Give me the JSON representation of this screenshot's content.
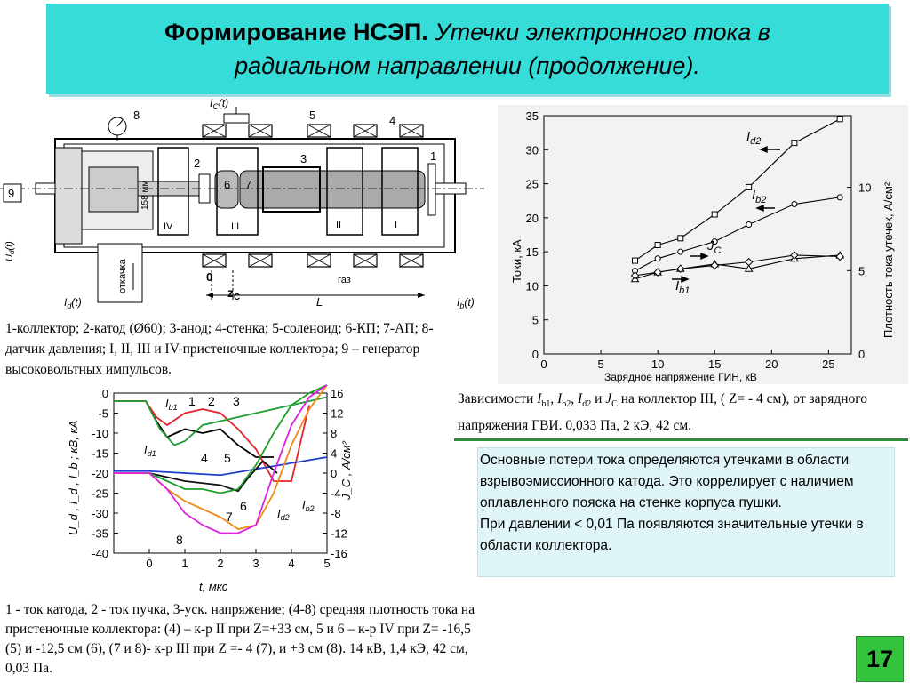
{
  "title": {
    "bold": "Формирование НСЭП.",
    "italic1": "Утечки электронного тока в",
    "italic2": "радиальном направлении (продолжение)."
  },
  "schematic": {
    "labels": {
      "ic": "I",
      "ic_sub": "C",
      "ic_t": "(t)",
      "n8": "8",
      "n5": "5",
      "n4": "4",
      "n3": "3",
      "n2": "2",
      "n1": "1",
      "n6": "6",
      "n7": "7",
      "n9": "9",
      "mm": "158 мм",
      "rIV": "IV",
      "rIII": "III",
      "rII": "II",
      "rI": "I",
      "otkachka": "откачка",
      "gas": "газ",
      "zero": "0",
      "zc": "z",
      "zc_sub": "C",
      "L": "L",
      "ud": "U",
      "ud_sub": "d",
      "ud_t": "(t)",
      "id": "I",
      "id_sub": "d",
      "id_t": "(t)",
      "ib": "I",
      "ib_sub": "b",
      "ib_t": "(t)"
    }
  },
  "caption_top": "1-коллектор; 2-катод (Ø60); 3-анод; 4-стенка; 5-соленоид; 6-КП; 7-АП; 8-датчик давления; I, II, III и IV-пристеночные коллектора; 9 – генератор высоковольтных импульсов.",
  "caption_bottom": "1 - ток катода, 2 - ток пучка,  3-уск. напряжение; (4-8) средняя плотность тока на пристеночные коллектора: (4) – к-р II при Z=+33 см, 5 и 6 – к-р IV при Z= -16,5 (5) и -12,5 см (6), (7 и 8)- к-р III  при Z =- 4 (7), и +3 см (8). 14 кВ, 1,4 кЭ, 42 см, 0,03 Па.",
  "caption_right": {
    "prefix": "Зависимости",
    "text": "на коллектор III, ( Z= - 4 см), от зарядного напряжения ГВИ. 0,033 Па, 2 кЭ, 42 см."
  },
  "notes": [
    "Основные потери тока определяются утечками в области взрывоэмиссионного катода. Это коррелирует с наличием оплавленного пояска на стенке корпуса пушки.",
    "При давлении < 0,01 Па появляются значительные утечки в области коллектора."
  ],
  "page_number": "17",
  "colors": {
    "title_bg": "#35dcd8",
    "divider": "#2f8a3a",
    "page_badge": "#34c33c",
    "notes_bg": "#dff5f7"
  },
  "chart_data": [
    {
      "type": "line",
      "title": "",
      "xlabel": "Зарядное напряжение ГИН, кВ",
      "ylabel": "Токи, кА",
      "ylabel_right": "Плотность тока утечек, А/см²",
      "xlim": [
        0,
        27
      ],
      "ylim": [
        0,
        35
      ],
      "ylim_right": [
        0,
        14.3
      ],
      "x_ticks": [
        "0",
        "5",
        "10",
        "15",
        "20",
        "25"
      ],
      "y_ticks": [
        "0",
        "5",
        "10",
        "15",
        "20",
        "25",
        "30",
        "35"
      ],
      "y_ticks_right": [
        "0",
        "5",
        "10"
      ],
      "series": [
        {
          "name": "Id2",
          "marker": "square",
          "x": [
            8,
            10,
            12,
            15,
            18,
            22,
            26
          ],
          "y": [
            13.7,
            16,
            17,
            20.5,
            24.5,
            31,
            34.5
          ]
        },
        {
          "name": "Ib2",
          "marker": "circle",
          "x": [
            8,
            10,
            12,
            15,
            18,
            22,
            26
          ],
          "y": [
            12.2,
            14,
            15,
            16.5,
            19,
            22,
            23
          ]
        },
        {
          "name": "JC",
          "marker": "triangle",
          "x": [
            8,
            10,
            12,
            15,
            18,
            22,
            26
          ],
          "y": [
            11,
            12,
            12.5,
            13.2,
            12.5,
            14,
            14.5
          ]
        },
        {
          "name": "Ib1",
          "marker": "diamond",
          "x": [
            8,
            10,
            12,
            15,
            18,
            22,
            26
          ],
          "y": [
            11.5,
            12,
            12.5,
            13,
            13.5,
            14.5,
            14.3
          ]
        }
      ],
      "labels": {
        "id2": "I",
        "id2_sub": "d2",
        "ib2": "I",
        "ib2_sub": "b2",
        "jc": "J",
        "jc_sub": "C",
        "ib1": "I",
        "ib1_sub": "b1"
      }
    },
    {
      "type": "line",
      "title": "",
      "xlabel": "t, мкс",
      "ylabel": "U_d , I_d , I_b ; кВ, кА",
      "ylabel_right": "J_C , А/см²",
      "xlim": [
        -1,
        5
      ],
      "ylim": [
        -40,
        0
      ],
      "ylim_right": [
        -16,
        16
      ],
      "x_ticks": [
        "0",
        "1",
        "2",
        "3",
        "4",
        "5"
      ],
      "y_ticks": [
        "0",
        "-5",
        "-10",
        "-15",
        "-20",
        "-25",
        "-30",
        "-35",
        "-40"
      ],
      "y_ticks_right": [
        "16",
        "12",
        "8",
        "4",
        "0",
        "-4",
        "-8",
        "-12",
        "-16"
      ],
      "series": [
        {
          "name": "1",
          "color": "#000000",
          "x": [
            -1,
            -0.1,
            0.2,
            0.5,
            1.0,
            1.5,
            2.0,
            2.5,
            3.0,
            3.5
          ],
          "y": [
            -2,
            -2,
            -7,
            -11,
            -9,
            -10,
            -9,
            -13,
            -16,
            -16
          ]
        },
        {
          "name": "2",
          "color": "#e8222a",
          "x": [
            -1,
            -0.1,
            0.2,
            0.5,
            1.0,
            1.5,
            2.0,
            2.5,
            3.0,
            3.5,
            4.0,
            4.5
          ],
          "y": [
            -2,
            -2,
            -6,
            -8,
            -5,
            -4,
            -5,
            -9,
            -14,
            -22,
            -22,
            -3
          ]
        },
        {
          "name": "3",
          "color": "#1e9e34",
          "x": [
            -1,
            -0.1,
            0.3,
            0.7,
            1.0,
            1.5,
            2.0,
            2.5,
            3.0,
            3.5,
            4.0,
            4.5,
            5.0
          ],
          "y": [
            -2,
            -2,
            -9,
            -13,
            -12,
            -8,
            -7,
            -6,
            -5,
            -4,
            -3,
            -2,
            -1
          ]
        },
        {
          "name": "4",
          "color": "#1f3fd0",
          "x": [
            -1,
            0,
            1,
            2,
            3,
            4,
            5
          ],
          "y": [
            -19.5,
            -19.5,
            -20,
            -20.5,
            -19,
            -17.5,
            -16
          ]
        },
        {
          "name": "5",
          "color": "#111111",
          "x": [
            -1,
            0,
            0.5,
            1.0,
            1.5,
            2.0,
            2.5,
            2.8,
            3.2,
            3.6
          ],
          "y": [
            -20,
            -20,
            -21,
            -22,
            -22.5,
            -23,
            -24.5,
            -21,
            -17,
            -20
          ]
        },
        {
          "name": "6",
          "color": "#1aa028",
          "x": [
            -1,
            0,
            0.5,
            1.0,
            1.5,
            2.0,
            2.5,
            3.0,
            3.5,
            4.0,
            4.5,
            5.0
          ],
          "y": [
            -20,
            -20,
            -22,
            -24,
            -24,
            -25,
            -24,
            -18,
            -10,
            -3,
            0,
            2
          ]
        },
        {
          "name": "7",
          "color": "#ef8a14",
          "x": [
            -1,
            0,
            0.5,
            1.0,
            1.5,
            2.0,
            2.5,
            3.0,
            3.5,
            4.0,
            4.5,
            5.0
          ],
          "y": [
            -20,
            -20,
            -24,
            -27,
            -29,
            -31,
            -34,
            -33,
            -25,
            -13,
            -4,
            2
          ]
        },
        {
          "name": "8",
          "color": "#e020e0",
          "x": [
            -1,
            0,
            0.5,
            1.0,
            1.5,
            2.0,
            2.5,
            3.0,
            3.5,
            4.0,
            4.5,
            5.0
          ],
          "y": [
            -20,
            -20,
            -24,
            -30,
            -33,
            -35,
            -35,
            -33,
            -20,
            -8,
            -1,
            2
          ]
        }
      ],
      "annotations": [
        "I",
        "b1",
        "I",
        "d1",
        "1",
        "2",
        "3",
        "4",
        "5",
        "6",
        "7",
        "8",
        "I",
        "d2",
        "I",
        "b2"
      ]
    }
  ]
}
